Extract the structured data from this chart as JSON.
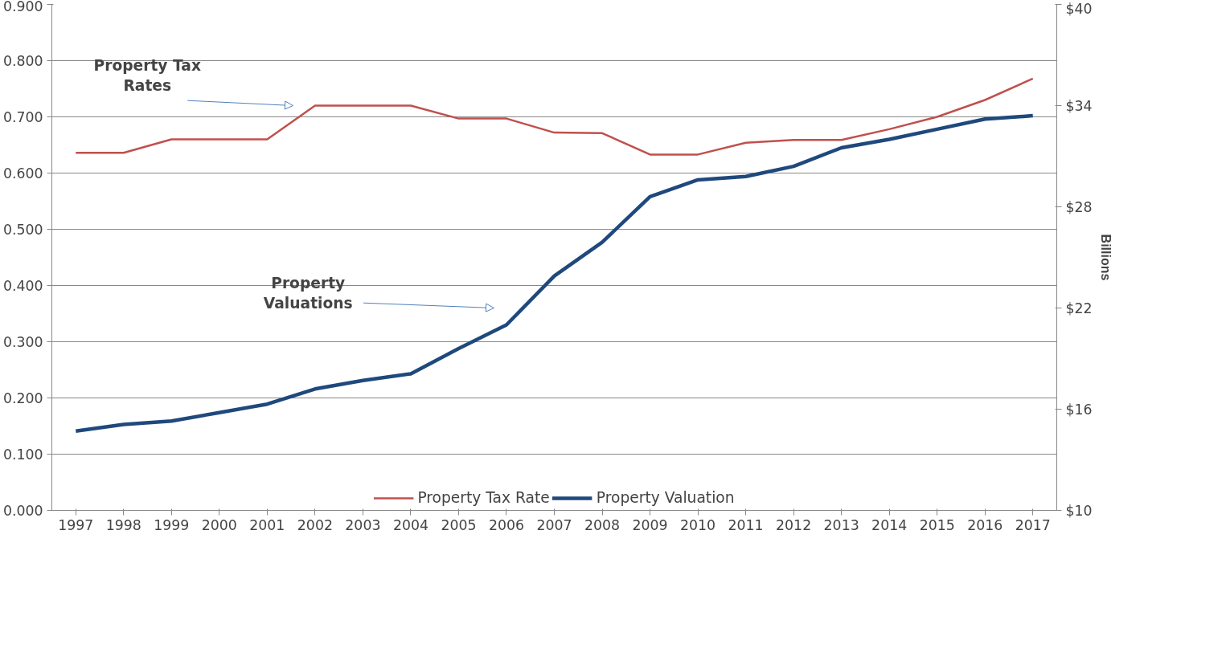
{
  "chart_data": {
    "type": "line",
    "categories": [
      "1997",
      "1998",
      "1999",
      "2000",
      "2001",
      "2002",
      "2003",
      "2004",
      "2005",
      "2006",
      "2007",
      "2008",
      "2009",
      "2010",
      "2011",
      "2012",
      "2013",
      "2014",
      "2015",
      "2016",
      "2017"
    ],
    "series": [
      {
        "name": "Property Tax Rate",
        "color": "#c0504d",
        "values": [
          0.636,
          0.636,
          0.66,
          0.66,
          0.66,
          0.72,
          0.72,
          0.72,
          0.697,
          0.697,
          0.672,
          0.671,
          0.633,
          0.633,
          0.654,
          0.659,
          0.659,
          0.678,
          0.7,
          0.73,
          0.768
        ]
      },
      {
        "name": "Property Valuation",
        "color": "#1f497d",
        "axis": "y2",
        "values": [
          14.7,
          15.1,
          15.3,
          15.8,
          16.3,
          17.2,
          17.7,
          18.1,
          19.6,
          21.0,
          23.9,
          25.9,
          28.6,
          29.6,
          29.8,
          30.4,
          31.5,
          32.0,
          32.6,
          33.2,
          33.4
        ]
      }
    ],
    "ylim": [
      0,
      0.9
    ],
    "yticks": [
      {
        "value": 0,
        "label": "0.000"
      },
      {
        "value": 0.1,
        "label": "0.100"
      },
      {
        "value": 0.2,
        "label": "0.200"
      },
      {
        "value": 0.3,
        "label": "0.300"
      },
      {
        "value": 0.4,
        "label": "0.400"
      },
      {
        "value": 0.5,
        "label": "0.500"
      },
      {
        "value": 0.6,
        "label": "0.600"
      },
      {
        "value": 0.7,
        "label": "0.700"
      },
      {
        "value": 0.8,
        "label": "0.800"
      },
      {
        "value": 0.9,
        "label": "0.900"
      }
    ],
    "y2lim": [
      10,
      40
    ],
    "y2ticks": [
      {
        "value": 10,
        "label": "$10"
      },
      {
        "value": 16,
        "label": "$16"
      },
      {
        "value": 22,
        "label": "$22"
      },
      {
        "value": 28,
        "label": "$28"
      },
      {
        "value": 34,
        "label": "$34"
      },
      {
        "value": 40,
        "label": "$40"
      }
    ],
    "y2label": "Billions",
    "annotations": [
      "Property Tax\nRates",
      "Property\nValuations"
    ],
    "grid": "y",
    "legend": "bottom",
    "marker": "none",
    "line_style": "solid"
  }
}
